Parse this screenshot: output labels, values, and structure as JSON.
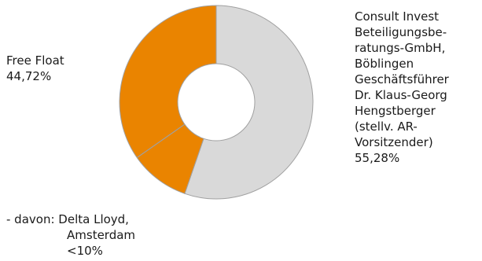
{
  "chart_data": {
    "type": "pie",
    "style": "donut",
    "slices": [
      {
        "label": "Consult Invest Beteiligungsberatungs-GmbH, Böblingen Geschäftsführer Dr. Klaus-Georg Hengstberger (stellv. AR-Vorsitzender)",
        "value": 55.28,
        "color": "#d9d9d9"
      },
      {
        "label": "Free Float",
        "value": 44.72,
        "color": "#ea8400",
        "sub_share": {
          "label": "Delta Lloyd, Amsterdam",
          "value": 10
        }
      }
    ]
  },
  "labels": {
    "free_float": {
      "lines": [
        "Free Float",
        "44,72%"
      ]
    },
    "consult": {
      "lines": [
        "Consult Invest",
        "Beteiligungsbe-",
        "ratungs-GmbH,",
        "Böblingen",
        "Geschäftsführer",
        "Dr. Klaus-Georg",
        "Hengstberger",
        "(stellv. AR-",
        "Vorsitzender)",
        "55,28%"
      ]
    },
    "davon": {
      "prefix": "- davon:",
      "first": "Delta Lloyd,",
      "lines": [
        "Amsterdam",
        "<10%"
      ]
    }
  },
  "colors": {
    "outline": "#a0a0a0"
  }
}
